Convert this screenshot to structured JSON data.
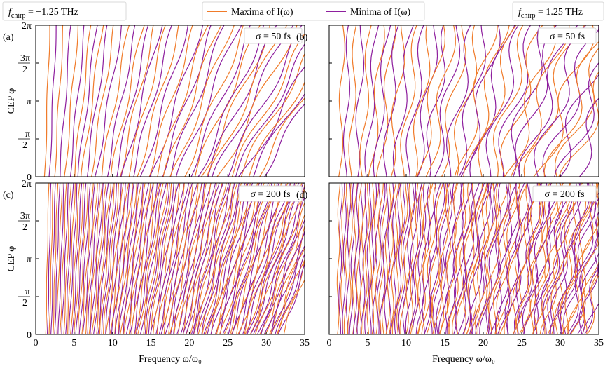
{
  "chart_data": {
    "type": "contour",
    "legend": {
      "placement": "top-center",
      "items": [
        {
          "label": "Maxima of I(ω)",
          "color": "#f07b2a"
        },
        {
          "label": "Minima of I(ω)",
          "color": "#8e1f9e"
        }
      ]
    },
    "chirp_labels": [
      {
        "prefix": "f",
        "sub": "chirp",
        "text": " = −1.25 THz"
      },
      {
        "prefix": "f",
        "sub": "chirp",
        "text": " = 1.25 THz"
      }
    ],
    "xlabel": "Frequency ω/ω₀",
    "ylabel": "CEP φ",
    "xlim": [
      0,
      35
    ],
    "ylim": [
      0,
      6.283
    ],
    "xticks": [
      "0",
      "5",
      "10",
      "15",
      "20",
      "25",
      "30",
      "35"
    ],
    "xtick_values": [
      0,
      5,
      10,
      15,
      20,
      25,
      30,
      35
    ],
    "yticks": [
      "0",
      "π/2",
      "π",
      "3π/2",
      "2π"
    ],
    "ytick_values": [
      0,
      1.5708,
      3.1416,
      4.7124,
      6.2832
    ],
    "panels": [
      {
        "id": "a",
        "label": "(a)",
        "sigma_label": "σ = 50 fs",
        "sigma_fs": 50,
        "chirp_THz": -1.25,
        "x_start": 1.5,
        "fringe_spacing": 0.72,
        "chirp": -1.25
      },
      {
        "id": "b",
        "label": "(b)",
        "sigma_label": "σ = 50 fs",
        "sigma_fs": 50,
        "chirp_THz": 1.25,
        "x_start": 1.6,
        "fringe_spacing": 0.72,
        "chirp": 1.25
      },
      {
        "id": "c",
        "label": "(c)",
        "sigma_label": "σ = 200 fs",
        "sigma_fs": 200,
        "chirp_THz": -1.25,
        "x_start": 1.5,
        "fringe_spacing": 0.26,
        "chirp": -1.25
      },
      {
        "id": "d",
        "label": "(d)",
        "sigma_label": "σ = 200 fs",
        "sigma_fs": 200,
        "chirp_THz": 1.25,
        "x_start": 1.2,
        "fringe_spacing": 0.26,
        "chirp": 1.25
      }
    ],
    "grid": false
  }
}
